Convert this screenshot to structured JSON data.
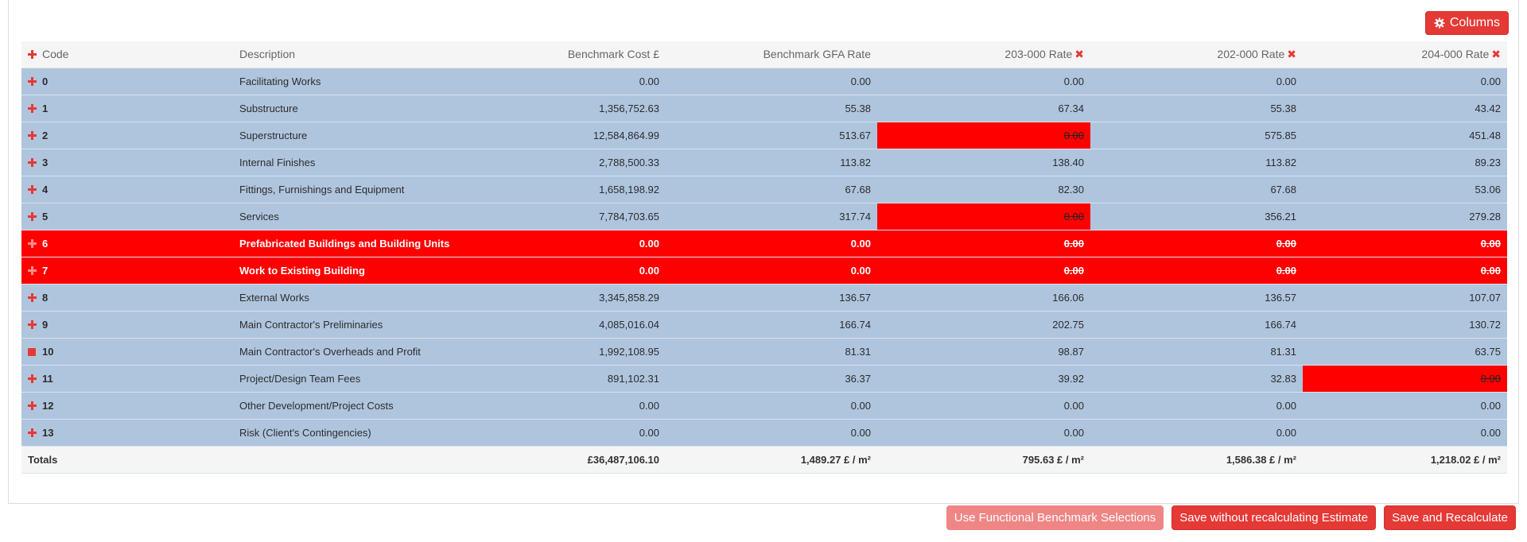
{
  "columns_button": {
    "label": "Columns"
  },
  "table": {
    "headers": {
      "code": "Code",
      "description": "Description",
      "benchmark_cost": "Benchmark Cost £",
      "benchmark_gfa": "Benchmark GFA Rate",
      "rate_203": "203-000 Rate",
      "rate_202": "202-000 Rate",
      "rate_204": "204-000 Rate"
    },
    "rows": [
      {
        "code": "0",
        "description": "Facilitating Works",
        "cost": "0.00",
        "gfa": "0.00",
        "r203": "0.00",
        "r202": "0.00",
        "r204": "0.00"
      },
      {
        "code": "1",
        "description": "Substructure",
        "cost": "1,356,752.63",
        "gfa": "55.38",
        "r203": "67.34",
        "r202": "55.38",
        "r204": "43.42"
      },
      {
        "code": "2",
        "description": "Superstructure",
        "cost": "12,584,864.99",
        "gfa": "513.67",
        "r203": "0.00",
        "r202": "575.85",
        "r204": "451.48"
      },
      {
        "code": "3",
        "description": "Internal Finishes",
        "cost": "2,788,500.33",
        "gfa": "113.82",
        "r203": "138.40",
        "r202": "113.82",
        "r204": "89.23"
      },
      {
        "code": "4",
        "description": "Fittings, Furnishings and Equipment",
        "cost": "1,658,198.92",
        "gfa": "67.68",
        "r203": "82.30",
        "r202": "67.68",
        "r204": "53.06"
      },
      {
        "code": "5",
        "description": "Services",
        "cost": "7,784,703.65",
        "gfa": "317.74",
        "r203": "0.00",
        "r202": "356.21",
        "r204": "279.28"
      },
      {
        "code": "6",
        "description": "Prefabricated Buildings and Building Units",
        "cost": "0.00",
        "gfa": "0.00",
        "r203": "0.00",
        "r202": "0.00",
        "r204": "0.00"
      },
      {
        "code": "7",
        "description": "Work to Existing Building",
        "cost": "0.00",
        "gfa": "0.00",
        "r203": "0.00",
        "r202": "0.00",
        "r204": "0.00"
      },
      {
        "code": "8",
        "description": "External Works",
        "cost": "3,345,858.29",
        "gfa": "136.57",
        "r203": "166.06",
        "r202": "136.57",
        "r204": "107.07"
      },
      {
        "code": "9",
        "description": "Main Contractor's Preliminaries",
        "cost": "4,085,016.04",
        "gfa": "166.74",
        "r203": "202.75",
        "r202": "166.74",
        "r204": "130.72"
      },
      {
        "code": "10",
        "description": "Main Contractor's Overheads and Profit",
        "cost": "1,992,108.95",
        "gfa": "81.31",
        "r203": "98.87",
        "r202": "81.31",
        "r204": "63.75"
      },
      {
        "code": "11",
        "description": "Project/Design Team Fees",
        "cost": "891,102.31",
        "gfa": "36.37",
        "r203": "39.92",
        "r202": "32.83",
        "r204": "0.00"
      },
      {
        "code": "12",
        "description": "Other Development/Project Costs",
        "cost": "0.00",
        "gfa": "0.00",
        "r203": "0.00",
        "r202": "0.00",
        "r204": "0.00"
      },
      {
        "code": "13",
        "description": "Risk (Client's Contingencies)",
        "cost": "0.00",
        "gfa": "0.00",
        "r203": "0.00",
        "r202": "0.00",
        "r204": "0.00"
      }
    ],
    "totals": {
      "label": "Totals",
      "cost": "£36,487,106.10",
      "gfa": "1,489.27 £ / m²",
      "r203": "795.63 £ / m²",
      "r202": "1,586.38 £ / m²",
      "r204": "1,218.02 £ / m²"
    }
  },
  "buttons": {
    "functional": "Use Functional Benchmark Selections",
    "save_no_recalc": "Save without recalculating Estimate",
    "save_recalc": "Save and Recalculate"
  },
  "colors": {
    "accent": "#e53935",
    "row_bg": "#afc5de",
    "highlight": "#ff0000"
  }
}
